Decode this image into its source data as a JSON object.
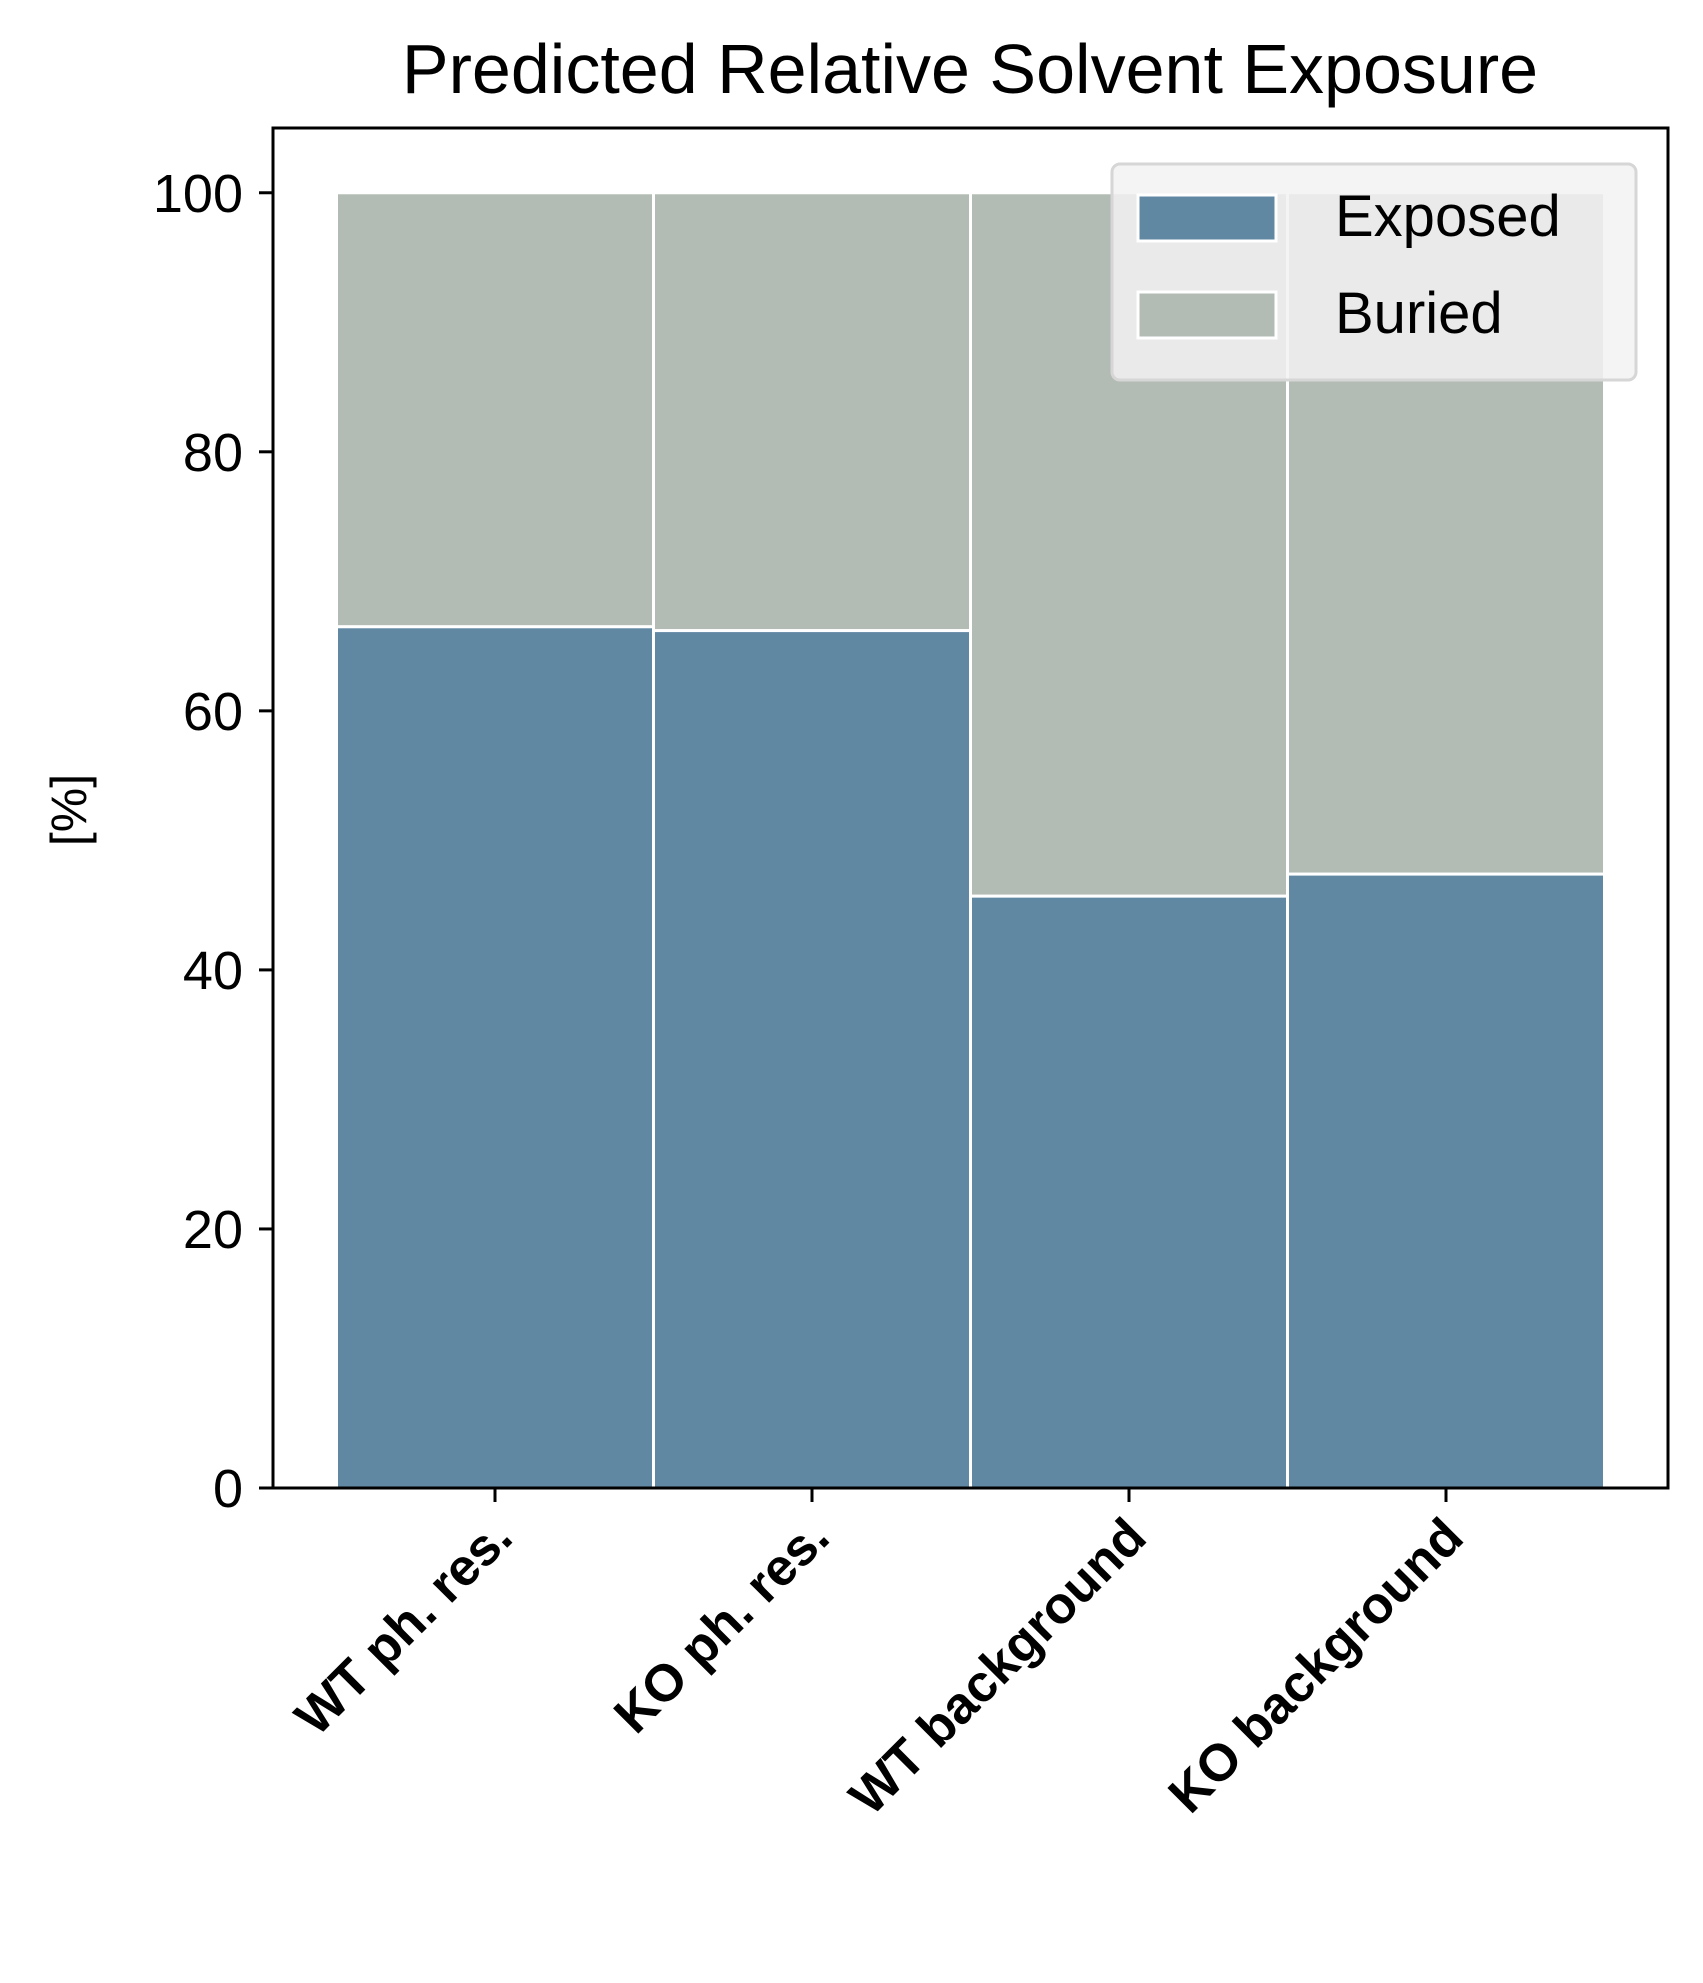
{
  "chart_data": {
    "type": "bar",
    "stacked": true,
    "title": "Predicted Relative Solvent Exposure",
    "xlabel": "",
    "ylabel": "[%]",
    "ylim": [
      0,
      105
    ],
    "yticks": [
      0,
      20,
      40,
      60,
      80,
      100
    ],
    "categories": [
      "WT ph. res.",
      "KO ph. res.",
      "WT background",
      "KO background"
    ],
    "series": [
      {
        "name": "Exposed",
        "color": "#6088a3",
        "values": [
          66.5,
          66.2,
          45.7,
          47.4
        ]
      },
      {
        "name": "Buried",
        "color": "#b3bcb4",
        "values": [
          33.5,
          33.8,
          54.3,
          52.6
        ]
      }
    ],
    "legend_position": "top-right",
    "grid": false
  }
}
